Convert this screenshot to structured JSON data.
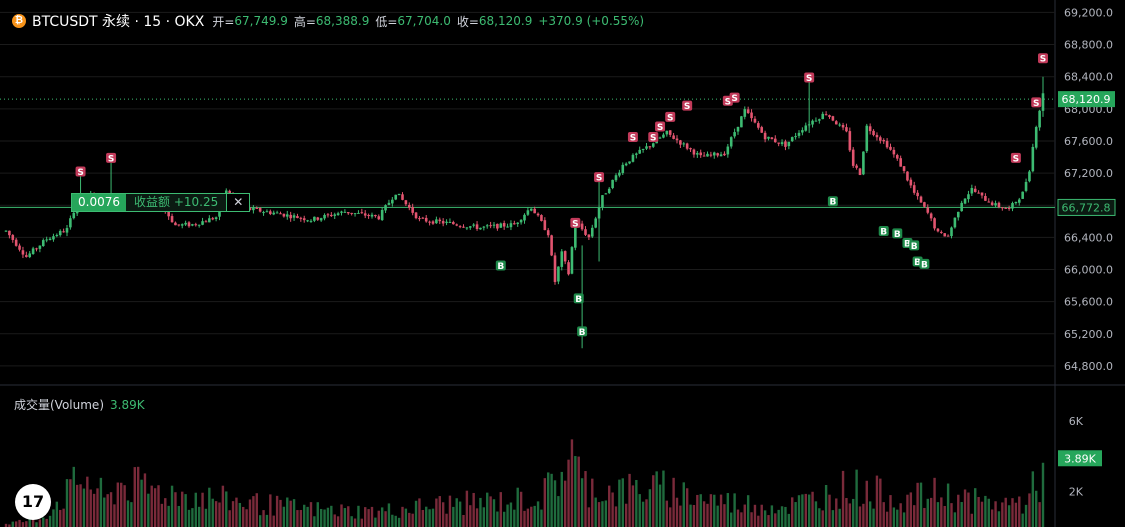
{
  "header": {
    "coin_icon": "bitcoin-icon",
    "symbol": "BTCUSDT 永续 · 15 · OKX",
    "open_label": "开=",
    "open": "67,749.9",
    "high_label": "高=",
    "high": "68,388.9",
    "low_label": "低=",
    "low": "67,704.0",
    "close_label": "收=",
    "close": "68,120.9",
    "change": "+370.9 (+0.55%)"
  },
  "position": {
    "qty": "0.0076",
    "pnl": "收益额 +10.25",
    "close_glyph": "✕"
  },
  "volume": {
    "label": "成交量(Volume)",
    "value": "3.89K"
  },
  "logo": {
    "text": "17"
  },
  "colors": {
    "up": "#3dbb72",
    "down": "#e2546f",
    "bg": "#000000",
    "text": "#d1d4dc",
    "grid": "#1b1b1b"
  },
  "chart_data": {
    "type": "candlestick",
    "price_axis": {
      "ticks": [
        "69,200.0",
        "68,800.0",
        "68,400.0",
        "68,000.0",
        "67,600.0",
        "67,200.0",
        "66,800.0",
        "66,400.0",
        "66,000.0",
        "65,600.0",
        "65,200.0",
        "64,800.0"
      ],
      "min": 64550,
      "max": 69280
    },
    "current_price_label": "68,120.9",
    "current_price": 68120.9,
    "position_price_label": "66,772.8",
    "position_price": 66772.8,
    "volume_axis": {
      "ticks": [
        "6K",
        "2K"
      ],
      "tick_values": [
        6000,
        2000
      ],
      "max": 7300,
      "current_label": "3.89K",
      "current_value": 3890
    },
    "trend": [
      [
        0,
        66480
      ],
      [
        6,
        66160
      ],
      [
        12,
        66380
      ],
      [
        18,
        66500
      ],
      [
        21,
        66850
      ],
      [
        25,
        66920
      ],
      [
        30,
        66880
      ],
      [
        35,
        66860
      ],
      [
        38,
        66890
      ],
      [
        45,
        66850
      ],
      [
        50,
        66550
      ],
      [
        55,
        66560
      ],
      [
        62,
        66650
      ],
      [
        65,
        66970
      ],
      [
        70,
        66760
      ],
      [
        80,
        66700
      ],
      [
        90,
        66620
      ],
      [
        100,
        66720
      ],
      [
        110,
        66650
      ],
      [
        115,
        66960
      ],
      [
        122,
        66620
      ],
      [
        130,
        66580
      ],
      [
        140,
        66520
      ],
      [
        150,
        66560
      ],
      [
        155,
        66780
      ],
      [
        160,
        66450
      ],
      [
        162,
        65850
      ],
      [
        164,
        66200
      ],
      [
        166,
        65950
      ],
      [
        168,
        66600
      ],
      [
        172,
        66400
      ],
      [
        176,
        66900
      ],
      [
        182,
        67300
      ],
      [
        185,
        67400
      ],
      [
        190,
        67550
      ],
      [
        195,
        67700
      ],
      [
        200,
        67550
      ],
      [
        205,
        67400
      ],
      [
        212,
        67450
      ],
      [
        218,
        67980
      ],
      [
        224,
        67650
      ],
      [
        230,
        67550
      ],
      [
        236,
        67800
      ],
      [
        242,
        67950
      ],
      [
        248,
        67700
      ],
      [
        250,
        67300
      ],
      [
        252,
        67200
      ],
      [
        254,
        67780
      ],
      [
        260,
        67550
      ],
      [
        264,
        67300
      ],
      [
        268,
        66950
      ],
      [
        272,
        66700
      ],
      [
        275,
        66450
      ],
      [
        278,
        66420
      ],
      [
        282,
        66850
      ],
      [
        285,
        67000
      ],
      [
        288,
        66900
      ],
      [
        292,
        66800
      ],
      [
        296,
        66750
      ],
      [
        300,
        66950
      ],
      [
        302,
        67250
      ],
      [
        304,
        67800
      ],
      [
        306,
        68180
      ]
    ],
    "sell_markers": [
      [
        22,
        67220
      ],
      [
        31,
        67390
      ],
      [
        168,
        66580
      ],
      [
        175,
        67150
      ],
      [
        185,
        67650
      ],
      [
        191,
        67650
      ],
      [
        193,
        67780
      ],
      [
        196,
        67900
      ],
      [
        201,
        68040
      ],
      [
        213,
        68100
      ],
      [
        215,
        68140
      ],
      [
        237,
        68390
      ],
      [
        298,
        67390
      ],
      [
        304,
        68080
      ],
      [
        306,
        68630
      ]
    ],
    "buy_markers": [
      [
        146,
        66050
      ],
      [
        169,
        65640
      ],
      [
        170,
        65230
      ],
      [
        244,
        66850
      ],
      [
        259,
        66480
      ],
      [
        263,
        66450
      ],
      [
        266,
        66330
      ],
      [
        268,
        66300
      ],
      [
        269,
        66100
      ],
      [
        271,
        66070
      ]
    ],
    "volume": [
      [
        0,
        300
      ],
      [
        10,
        600
      ],
      [
        23,
        3900
      ],
      [
        30,
        2000
      ],
      [
        33,
        3400
      ],
      [
        50,
        2600
      ],
      [
        65,
        2100
      ],
      [
        85,
        1500
      ],
      [
        95,
        1300
      ],
      [
        110,
        1200
      ],
      [
        130,
        1800
      ],
      [
        147,
        2000
      ],
      [
        158,
        2300
      ],
      [
        165,
        4600
      ],
      [
        166,
        6500
      ],
      [
        170,
        3300
      ],
      [
        178,
        2800
      ],
      [
        186,
        2900
      ],
      [
        195,
        3000
      ],
      [
        205,
        2300
      ],
      [
        215,
        1900
      ],
      [
        230,
        1600
      ],
      [
        240,
        2300
      ],
      [
        249,
        3200
      ],
      [
        252,
        3000
      ],
      [
        265,
        2100
      ],
      [
        275,
        2600
      ],
      [
        290,
        1800
      ],
      [
        300,
        1900
      ],
      [
        306,
        3900
      ]
    ]
  }
}
